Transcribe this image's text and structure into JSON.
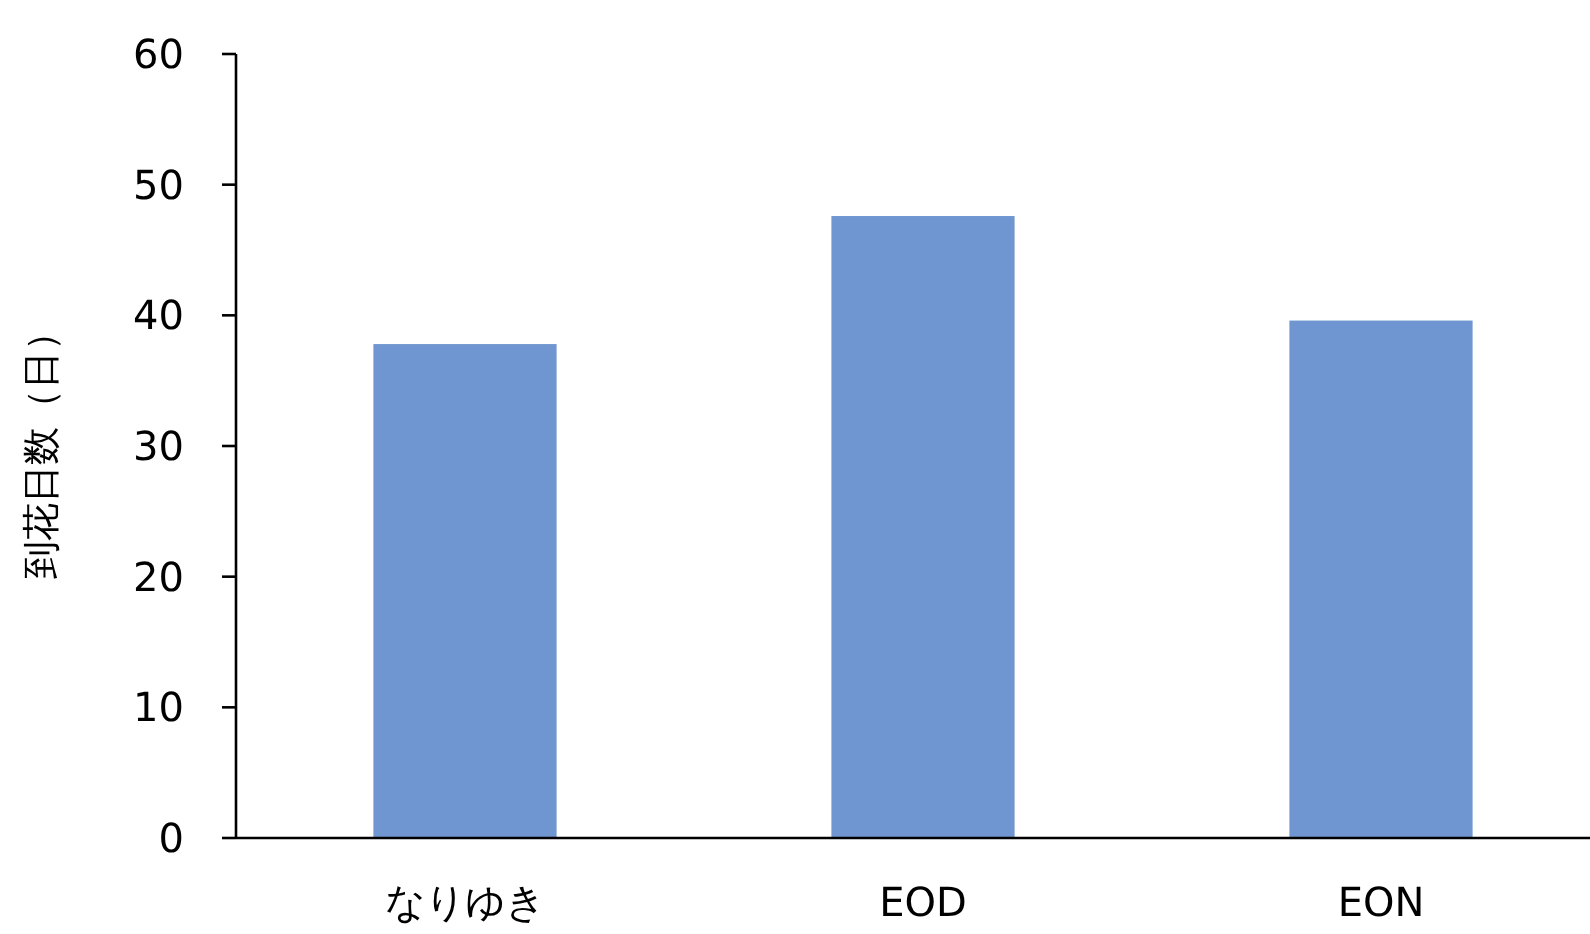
{
  "chart_data": {
    "type": "bar",
    "ylabel": "到花日数（日）",
    "categories": [
      "なりゆき",
      "EOD",
      "EON"
    ],
    "values": [
      37.8,
      47.6,
      39.6
    ],
    "color": "#6f96d0",
    "ylim": [
      0,
      60
    ],
    "yticks": [
      0,
      10,
      20,
      30,
      40,
      50,
      60
    ],
    "grid": false
  }
}
